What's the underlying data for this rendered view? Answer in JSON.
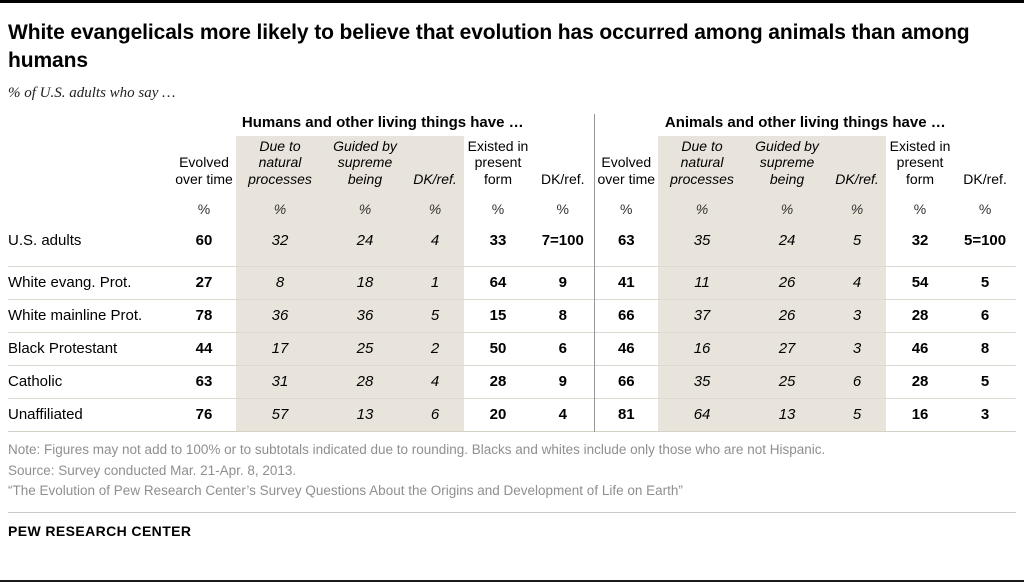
{
  "page": {
    "title": "White evangelicals more likely to believe that evolution has occurred among animals than among humans",
    "subtitle": "% of U.S. adults who say …",
    "notes": [
      "Note: Figures may not add to 100% or to subtotals indicated due to rounding. Blacks and whites include only those who are not Hispanic.",
      "Source: Survey conducted Mar. 21-Apr. 8, 2013.",
      "“The Evolution of Pew Research Center’s Survey Questions About the Origins and Development of Life on Earth”"
    ],
    "footer": "PEW RESEARCH CENTER"
  },
  "colors": {
    "shade": "#e8e4db",
    "divider": "#979797",
    "note": "#8f8f8f"
  },
  "chart_data": {
    "type": "table",
    "unit": "%",
    "groups": [
      {
        "label": "Humans and other living things have …",
        "columns": [
          {
            "label": "Evolved over time",
            "style": "bold"
          },
          {
            "label": "Due to natural processes",
            "style": "italic"
          },
          {
            "label": "Guided by supreme being",
            "style": "italic"
          },
          {
            "label": "DK/ref.",
            "style": "italic"
          },
          {
            "label": "Existed in present form",
            "style": "bold"
          },
          {
            "label": "DK/ref.",
            "style": "bold"
          }
        ]
      },
      {
        "label": "Animals and other living things have …",
        "columns": [
          {
            "label": "Evolved over time",
            "style": "bold"
          },
          {
            "label": "Due to natural processes",
            "style": "italic"
          },
          {
            "label": "Guided by supreme being",
            "style": "italic"
          },
          {
            "label": "DK/ref.",
            "style": "italic"
          },
          {
            "label": "Existed in present form",
            "style": "bold"
          },
          {
            "label": "DK/ref.",
            "style": "bold"
          }
        ]
      }
    ],
    "rows": [
      {
        "label": "U.S. adults",
        "values": [
          "60",
          "32",
          "24",
          "4",
          "33",
          "7=100",
          "63",
          "35",
          "24",
          "5",
          "32",
          "5=100"
        ]
      },
      {
        "label": "White evang. Prot.",
        "values": [
          "27",
          "8",
          "18",
          "1",
          "64",
          "9",
          "41",
          "11",
          "26",
          "4",
          "54",
          "5"
        ]
      },
      {
        "label": "White mainline Prot.",
        "values": [
          "78",
          "36",
          "36",
          "5",
          "15",
          "8",
          "66",
          "37",
          "26",
          "3",
          "28",
          "6"
        ]
      },
      {
        "label": "Black Protestant",
        "values": [
          "44",
          "17",
          "25",
          "2",
          "50",
          "6",
          "46",
          "16",
          "27",
          "3",
          "46",
          "8"
        ]
      },
      {
        "label": "Catholic",
        "values": [
          "63",
          "31",
          "28",
          "4",
          "28",
          "9",
          "66",
          "35",
          "25",
          "6",
          "28",
          "5"
        ]
      },
      {
        "label": "Unaffiliated",
        "values": [
          "76",
          "57",
          "13",
          "6",
          "20",
          "4",
          "81",
          "64",
          "13",
          "5",
          "16",
          "3"
        ]
      }
    ]
  }
}
